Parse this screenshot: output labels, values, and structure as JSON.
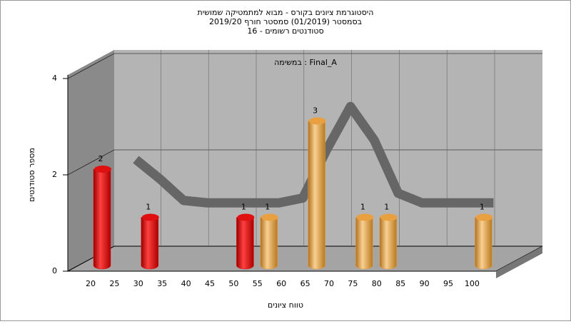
{
  "chart_data": {
    "type": "bar",
    "title": [
      "היסטוגרמת ציונים בקורס - מבוא למתמטיקה שמושית",
      "בסמסטר  (01/2019)  סמסטר חורף 2019/20",
      "סטודנטים רשומים - 16"
    ],
    "annotation": "במשימה : Final_A",
    "y_label": "מספר סטודנטים",
    "x_label": "טווח ציונים",
    "categories": [
      "20",
      "25",
      "30",
      "35",
      "40",
      "45",
      "50",
      "55",
      "60",
      "65",
      "70",
      "75",
      "80",
      "85",
      "90",
      "95",
      "100"
    ],
    "values": [
      2,
      0,
      1,
      0,
      0,
      0,
      1,
      1,
      0,
      3,
      0,
      1,
      1,
      0,
      0,
      0,
      1
    ],
    "colors": [
      "#e01010",
      "#e01010",
      "#e01010",
      "#e01010",
      "#e01010",
      "#e01010",
      "#e01010",
      "#e8a040",
      "#e8a040",
      "#e8a040",
      "#e8a040",
      "#e8a040",
      "#e8a040",
      "#e8a040",
      "#e8a040",
      "#e8a040",
      "#e8a040"
    ],
    "line": {
      "color": "#666666",
      "values": [
        null,
        2.2,
        1.8,
        1.35,
        1.3,
        1.3,
        1.3,
        1.3,
        1.4,
        2.4,
        3.3,
        2.6,
        1.5,
        1.3,
        1.3,
        1.3,
        1.3
      ]
    },
    "ylim": [
      0,
      4
    ],
    "yticks": [
      0,
      2,
      4
    ],
    "grid": true
  }
}
